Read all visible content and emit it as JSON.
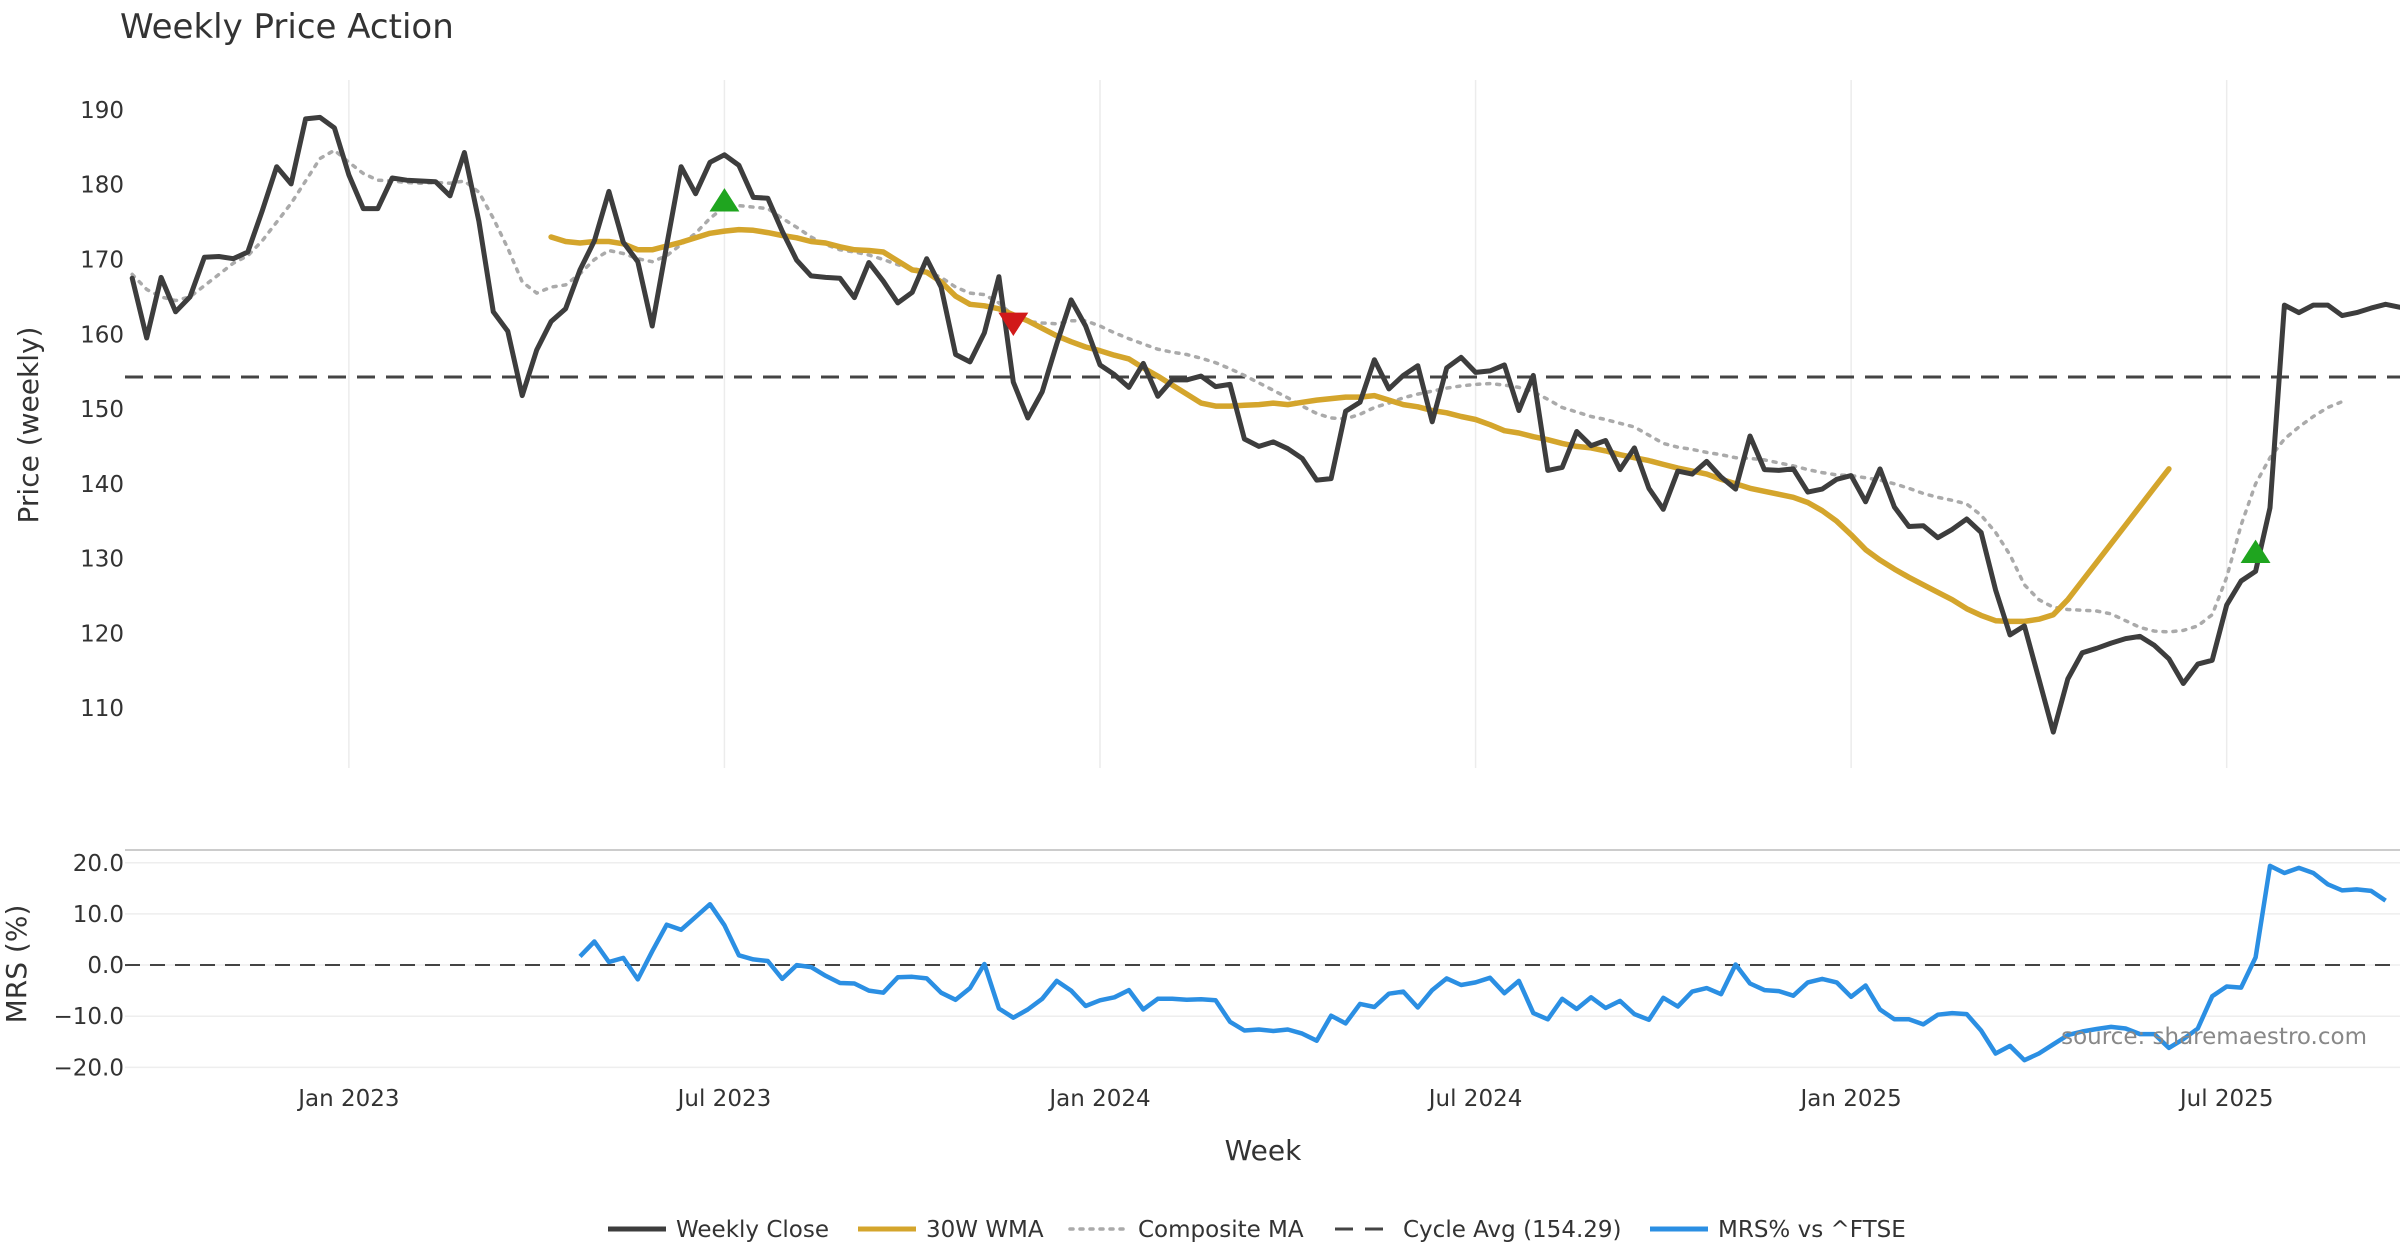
{
  "chart_data": {
    "type": "line",
    "title": "Weekly Price Action",
    "watermark": "source: sharemaestro.com",
    "xlabel": "Week",
    "x_ticks": [
      "Jan 2023",
      "Jul 2023",
      "Jan 2024",
      "Jul 2024",
      "Jan 2025",
      "Jul 2025"
    ],
    "x_tick_weeks": [
      15,
      41,
      67,
      93,
      119,
      145
    ],
    "x_range": [
      -0.5,
      157
    ],
    "price_panel": {
      "ylabel": "Price (weekly)",
      "ylim": [
        102,
        194
      ],
      "y_ticks": [
        110,
        120,
        130,
        140,
        150,
        160,
        170,
        180,
        190
      ],
      "cycle_avg": 154.29,
      "series": [
        {
          "name": "Weekly Close",
          "color": "#3d3d3d",
          "start_week": 0,
          "values": [
            167.5,
            159.5,
            167.6,
            163.0,
            165.0,
            170.3,
            170.4,
            170.1,
            171.0,
            176.5,
            182.4,
            180.1,
            188.8,
            189.0,
            187.6,
            181.3,
            176.8,
            176.8,
            180.9,
            180.6,
            180.5,
            180.4,
            178.5,
            184.3,
            175.1,
            163.0,
            160.4,
            151.8,
            157.9,
            161.7,
            163.4,
            168.6,
            172.5,
            179.1,
            172.3,
            169.7,
            161.1,
            171.9,
            182.4,
            178.8,
            183.0,
            184.0,
            182.6,
            178.3,
            178.2,
            173.8,
            169.9,
            167.8,
            167.6,
            167.5,
            164.9,
            169.6,
            167.1,
            164.2,
            165.6,
            170.1,
            166.3,
            157.3,
            156.3,
            160.2,
            167.7,
            153.6,
            148.8,
            152.3,
            158.7,
            164.6,
            161.1,
            155.9,
            154.6,
            152.9,
            156.1,
            151.7,
            153.9,
            153.9,
            154.4,
            153.0,
            153.3,
            146.0,
            145.0,
            145.6,
            144.7,
            143.4,
            140.5,
            140.7,
            149.7,
            150.9,
            156.6,
            152.7,
            154.5,
            155.8,
            148.3,
            155.5,
            156.9,
            154.9,
            155.1,
            155.9,
            149.8,
            154.5,
            141.8,
            142.2,
            147.0,
            145.1,
            145.8,
            141.9,
            144.8,
            139.4,
            136.6,
            141.7,
            141.3,
            143.0,
            140.9,
            139.3,
            146.4,
            141.9,
            141.8,
            142.0,
            138.9,
            139.3,
            140.6,
            141.1,
            137.6,
            142.0,
            136.9,
            134.3,
            134.4,
            132.8,
            133.9,
            135.3,
            133.5,
            125.8,
            119.8,
            121.0,
            113.9,
            106.8,
            113.9,
            117.4,
            118.0,
            118.7,
            119.3,
            119.6,
            118.4,
            116.6,
            113.3,
            115.9,
            116.4,
            123.8,
            127.0,
            128.3,
            136.8,
            163.9,
            162.9,
            163.9,
            163.9,
            162.5,
            162.9,
            163.5,
            164.0,
            163.6
          ]
        },
        {
          "name": "30W WMA",
          "color": "#d4a52c",
          "start_week": 29,
          "values": [
            173.0,
            172.4,
            172.2,
            172.4,
            172.4,
            172.1,
            171.3,
            171.3,
            171.8,
            172.3,
            172.9,
            173.5,
            173.8,
            174.0,
            173.9,
            173.6,
            173.2,
            172.9,
            172.4,
            172.2,
            171.7,
            171.3,
            171.2,
            171.0,
            169.8,
            168.6,
            168.3,
            167.0,
            165.1,
            164.0,
            163.8,
            163.4,
            162.6,
            161.8,
            160.8,
            159.8,
            159.0,
            158.3,
            157.8,
            157.2,
            156.7,
            155.5,
            154.4,
            153.2,
            152.0,
            150.8,
            150.4,
            150.4,
            150.5,
            150.6,
            150.8,
            150.6,
            150.9,
            151.2,
            151.4,
            151.6,
            151.6,
            151.8,
            151.2,
            150.6,
            150.3,
            149.8,
            149.5,
            149.0,
            148.6,
            147.9,
            147.1,
            146.8,
            146.3,
            145.9,
            145.4,
            145.0,
            144.8,
            144.4,
            143.9,
            143.5,
            143.1,
            142.6,
            142.1,
            141.7,
            141.3,
            140.6,
            140.0,
            139.4,
            139.0,
            138.6,
            138.2,
            137.5,
            136.4,
            135.0,
            133.2,
            131.2,
            129.8,
            128.6,
            127.5,
            126.5,
            125.5,
            124.5,
            123.3,
            122.4,
            121.7,
            121.6,
            121.6,
            121.9,
            122.5,
            124.5,
            127.0,
            129.5,
            132.0,
            134.5,
            137.0,
            139.5,
            142.0
          ]
        },
        {
          "name": "Composite MA",
          "color": "#aaaaaa",
          "start_week": 0,
          "values": [
            168.0,
            166.0,
            165.0,
            164.5,
            165.0,
            166.5,
            168.0,
            169.5,
            170.5,
            172.5,
            175.0,
            177.5,
            180.5,
            183.5,
            184.6,
            183.0,
            181.5,
            180.6,
            180.5,
            180.3,
            180.2,
            180.3,
            180.2,
            180.5,
            179.0,
            175.5,
            171.5,
            167.0,
            165.5,
            166.3,
            166.6,
            168.1,
            170.0,
            171.2,
            170.8,
            170.1,
            169.7,
            170.5,
            172.0,
            173.5,
            175.5,
            177.0,
            177.2,
            177.0,
            176.8,
            175.5,
            174.3,
            173.0,
            172.0,
            171.3,
            171.0,
            170.6,
            170.0,
            169.3,
            168.8,
            168.4,
            167.6,
            166.3,
            165.5,
            165.3,
            164.2,
            162.5,
            161.7,
            161.5,
            161.4,
            161.8,
            161.8,
            161.1,
            160.2,
            159.4,
            158.7,
            158.0,
            157.6,
            157.3,
            156.8,
            156.2,
            155.4,
            154.5,
            153.5,
            152.5,
            151.5,
            150.4,
            149.4,
            148.8,
            148.7,
            149.3,
            150.2,
            150.8,
            151.5,
            152.0,
            152.4,
            152.8,
            153.1,
            153.3,
            153.4,
            153.2,
            152.9,
            152.3,
            151.3,
            150.2,
            149.6,
            149.0,
            148.6,
            148.1,
            147.6,
            146.5,
            145.4,
            144.9,
            144.6,
            144.2,
            143.9,
            143.5,
            143.4,
            143.2,
            142.8,
            142.4,
            141.9,
            141.5,
            141.2,
            141.1,
            140.8,
            140.5,
            140.0,
            139.4,
            138.7,
            138.2,
            137.8,
            137.3,
            135.8,
            133.5,
            130.5,
            126.5,
            124.5,
            123.5,
            123.2,
            123.1,
            123.0,
            122.6,
            121.7,
            120.8,
            120.3,
            120.2,
            120.4,
            121.0,
            122.5,
            127.5,
            134.5,
            140.0,
            143.5,
            146.0,
            147.6,
            149.0,
            150.2,
            151.0
          ]
        }
      ],
      "markers": [
        {
          "type": "buy",
          "week": 41,
          "value": 177.8,
          "color": "#1fa51f"
        },
        {
          "type": "sell",
          "week": 61,
          "value": 161.5,
          "color": "#d11a1a"
        },
        {
          "type": "buy",
          "week": 147,
          "value": 130.8,
          "color": "#1fa51f"
        }
      ]
    },
    "mrs_panel": {
      "ylabel": "MRS (%)",
      "ylim": [
        -21.5,
        22.5
      ],
      "y_ticks": [
        20.0,
        10.0,
        0.0,
        -10.0,
        -20.0
      ],
      "y_tick_labels": [
        "20.0",
        "10.0",
        "0.0",
        "−10.0",
        "−20.0"
      ],
      "zero_line": 0,
      "series": [
        {
          "name": "MRS% vs ^FTSE",
          "color": "#2b8fe3",
          "start_week": 31,
          "values": [
            1.7,
            4.6,
            0.6,
            1.4,
            -2.8,
            2.7,
            7.9,
            6.9,
            9.4,
            11.9,
            7.8,
            1.9,
            1.1,
            0.8,
            -2.7,
            0.0,
            -0.4,
            -2.1,
            -3.5,
            -3.6,
            -5.0,
            -5.4,
            -2.4,
            -2.3,
            -2.6,
            -5.4,
            -6.8,
            -4.5,
            0.2,
            -8.5,
            -10.3,
            -8.7,
            -6.6,
            -3.1,
            -5.0,
            -8.0,
            -6.9,
            -6.3,
            -4.9,
            -8.7,
            -6.6,
            -6.6,
            -6.8,
            -6.7,
            -6.9,
            -11.1,
            -12.8,
            -12.6,
            -12.9,
            -12.6,
            -13.4,
            -14.8,
            -9.9,
            -11.4,
            -7.6,
            -8.2,
            -5.6,
            -5.2,
            -8.3,
            -4.9,
            -2.6,
            -3.9,
            -3.4,
            -2.5,
            -5.5,
            -3.1,
            -9.4,
            -10.6,
            -6.6,
            -8.6,
            -6.3,
            -8.4,
            -7.0,
            -9.6,
            -10.7,
            -6.4,
            -8.1,
            -5.2,
            -4.5,
            -5.7,
            0.1,
            -3.6,
            -4.9,
            -5.1,
            -6.0,
            -3.4,
            -2.7,
            -3.4,
            -6.2,
            -4.0,
            -8.7,
            -10.6,
            -10.6,
            -11.6,
            -9.7,
            -9.4,
            -9.6,
            -12.8,
            -17.3,
            -15.8,
            -18.6,
            -17.3,
            -15.5,
            -13.7,
            -13.0,
            -12.5,
            -12.1,
            -12.4,
            -13.5,
            -13.5,
            -16.2,
            -14.5,
            -12.4,
            -6.1,
            -4.2,
            -4.4,
            1.5,
            19.4,
            18.0,
            19.0,
            18.0,
            15.8,
            14.6,
            14.8,
            14.5,
            12.6
          ]
        }
      ]
    },
    "legend": {
      "placement": "bottom-center",
      "entries": [
        {
          "label": "Weekly Close",
          "color": "#3d3d3d",
          "style": "solid"
        },
        {
          "label": "30W WMA",
          "color": "#d4a52c",
          "style": "solid"
        },
        {
          "label": "Composite MA",
          "color": "#aaaaaa",
          "style": "dotted"
        },
        {
          "label": "Cycle Avg (154.29)",
          "color": "#444444",
          "style": "dashed"
        },
        {
          "label": "MRS% vs ^FTSE",
          "color": "#2b8fe3",
          "style": "solid"
        }
      ]
    }
  }
}
